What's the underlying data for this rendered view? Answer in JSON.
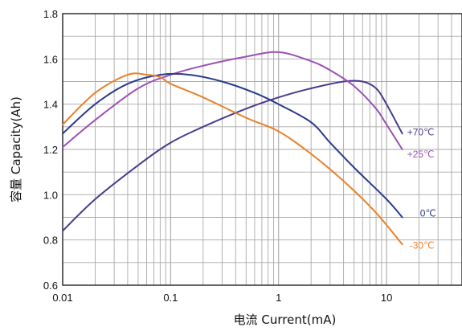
{
  "chart_data": {
    "type": "line",
    "xlabel": "电流 Current(mA)",
    "ylabel": "容量 Capacity(Ah)",
    "x_scale": "log",
    "xlim": [
      0.01,
      50
    ],
    "ylim": [
      0.6,
      1.8
    ],
    "x_ticks": [
      {
        "value": 0.01,
        "label": "0.01"
      },
      {
        "value": 0.1,
        "label": "0.1"
      },
      {
        "value": 1,
        "label": "1"
      },
      {
        "value": 10,
        "label": "10"
      }
    ],
    "y_ticks": [
      {
        "value": 0.6,
        "label": "0.6"
      },
      {
        "value": 0.8,
        "label": "0.8"
      },
      {
        "value": 1.0,
        "label": "1.0"
      },
      {
        "value": 1.2,
        "label": "1.2"
      },
      {
        "value": 1.4,
        "label": "1.4"
      },
      {
        "value": 1.6,
        "label": "1.6"
      },
      {
        "value": 1.8,
        "label": "1.8"
      }
    ],
    "grid": true,
    "series": [
      {
        "name": "+70℃",
        "color": "#4a3b8f",
        "x": [
          0.01,
          0.02,
          0.05,
          0.1,
          0.2,
          0.5,
          1,
          2,
          4,
          6,
          8,
          10,
          14
        ],
        "y": [
          0.84,
          0.98,
          1.13,
          1.23,
          1.3,
          1.38,
          1.43,
          1.47,
          1.5,
          1.5,
          1.47,
          1.4,
          1.27
        ]
      },
      {
        "name": "+25℃",
        "color": "#9b52b3",
        "x": [
          0.01,
          0.02,
          0.05,
          0.1,
          0.2,
          0.5,
          1,
          2,
          3,
          5,
          8,
          10,
          14
        ],
        "y": [
          1.21,
          1.33,
          1.47,
          1.53,
          1.57,
          1.61,
          1.63,
          1.59,
          1.55,
          1.48,
          1.38,
          1.31,
          1.2
        ]
      },
      {
        "name": "0℃",
        "color": "#2b3a8c",
        "x": [
          0.01,
          0.02,
          0.04,
          0.08,
          0.15,
          0.3,
          0.6,
          1,
          2,
          3,
          5,
          10,
          14
        ],
        "y": [
          1.27,
          1.4,
          1.49,
          1.53,
          1.53,
          1.5,
          1.45,
          1.4,
          1.32,
          1.23,
          1.12,
          0.98,
          0.9
        ]
      },
      {
        "name": "-30℃",
        "color": "#e8822a",
        "x": [
          0.01,
          0.02,
          0.04,
          0.06,
          0.08,
          0.1,
          0.2,
          0.5,
          1,
          2,
          4,
          8,
          14
        ],
        "y": [
          1.31,
          1.45,
          1.53,
          1.53,
          1.52,
          1.49,
          1.43,
          1.34,
          1.28,
          1.18,
          1.06,
          0.92,
          0.78
        ]
      }
    ],
    "series_label_positions": [
      "+70℃",
      "+25℃",
      "0℃",
      "-30℃"
    ]
  }
}
